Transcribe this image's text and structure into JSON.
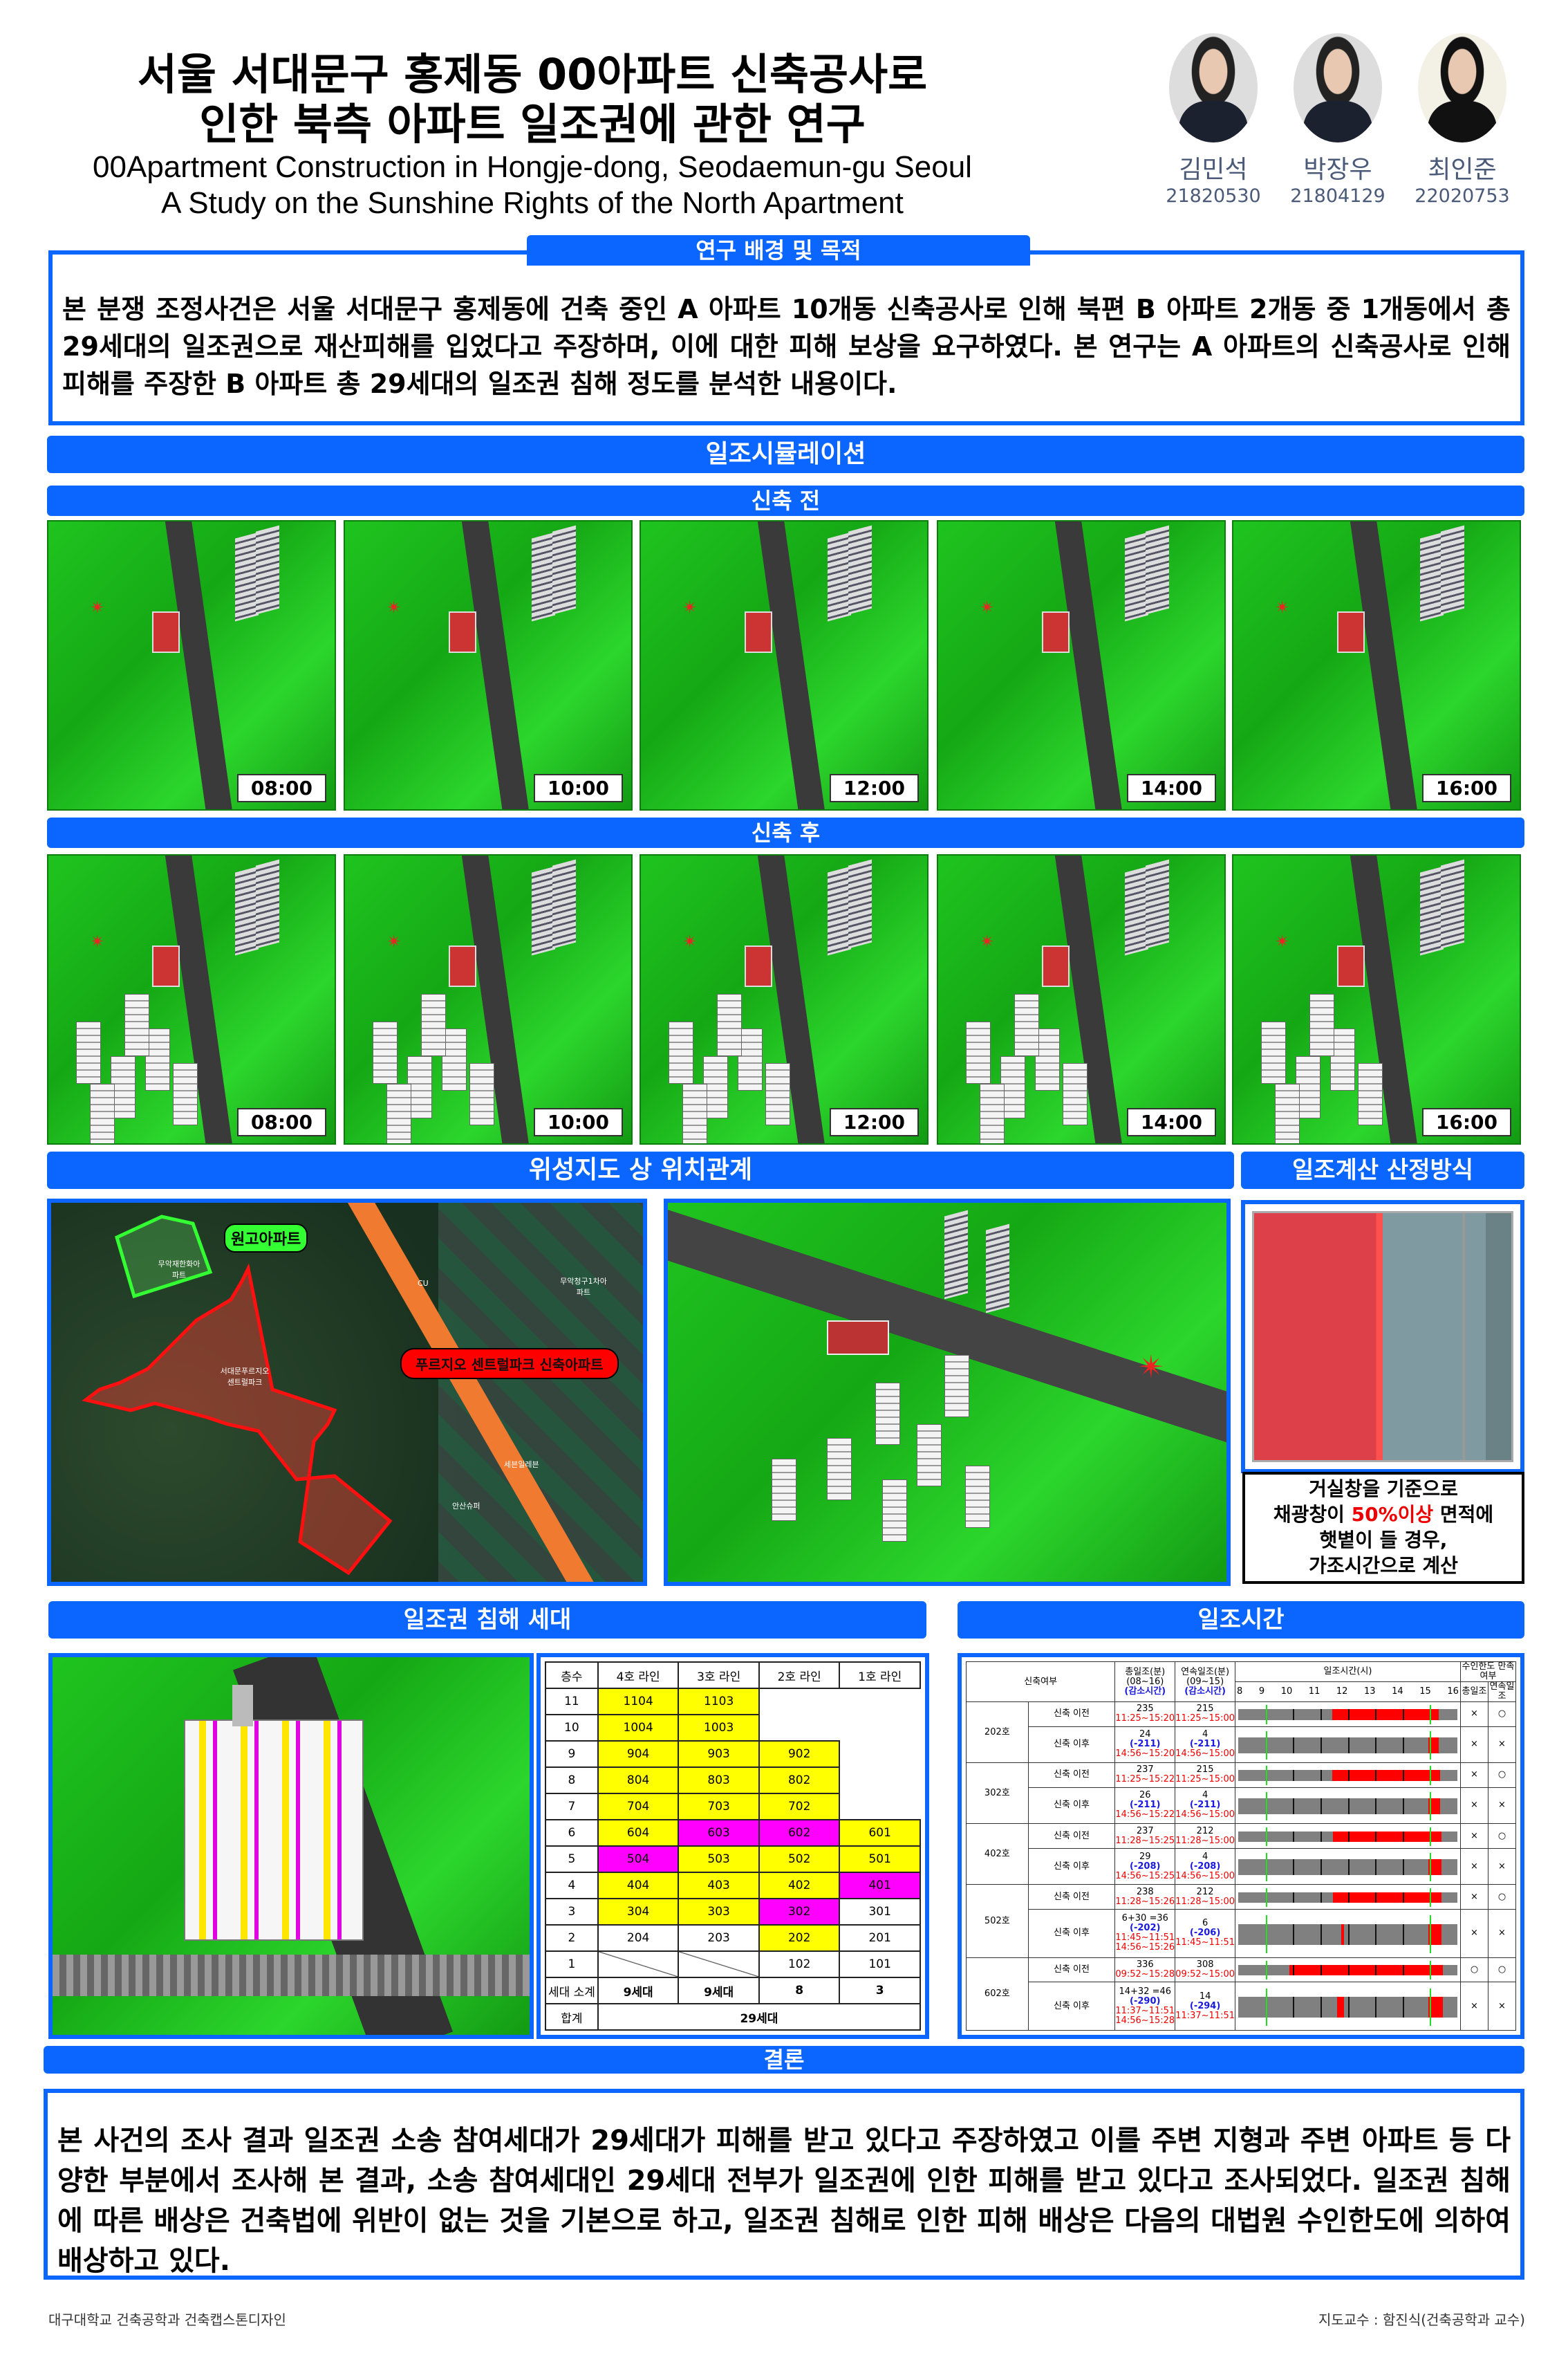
{
  "header": {
    "title_ko": [
      "서울 서대문구 홍제동 00아파트 신축공사로",
      "인한 북측 아파트 일조권에 관한 연구"
    ],
    "title_en": [
      "00Apartment Construction in Hongje-dong, Seodaemun-gu Seoul",
      "A Study on the Sunshine Rights of the North Apartment"
    ]
  },
  "authors": [
    {
      "name": "김민석",
      "id": "21820530"
    },
    {
      "name": "박장우",
      "id": "21804129"
    },
    {
      "name": "최인준",
      "id": "22020753"
    }
  ],
  "background": {
    "title": "연구 배경 및 목적",
    "text": "본 분쟁 조정사건은 서울 서대문구 홍제동에 건축 중인 A 아파트 10개동 신축공사로 인해 북편 B 아파트 2개동 중 1개동에서 총 29세대의 일조권으로 재산피해를 입었다고 주장하며, 이에 대한 피해 보상을 요구하였다. 본 연구는 A 아파트의 신축공사로 인해 피해를 주장한 B 아파트 총 29세대의 일조권 침해 정도를 분석한 내용이다."
  },
  "simulation": {
    "title": "일조시뮬레이션",
    "before_title": "신축 전",
    "after_title": "신축 후",
    "times": [
      "08:00",
      "10:00",
      "12:00",
      "14:00",
      "16:00"
    ]
  },
  "location": {
    "title": "위성지도 상 위치관계",
    "label_green": "원고아파트",
    "label_red": "푸르지오 센트럴파크 신축아파트",
    "map_labels": [
      "무악재한화아파트",
      "무악청구1차아파트",
      "서대문푸르지오센트럴파크",
      "세븐일레븐",
      "CU",
      "안산슈퍼"
    ]
  },
  "method": {
    "title": "일조계산 산정방식",
    "text_lines": [
      "거실창을 기준으로",
      "채광창이 ",
      "50%이상",
      " 면적에",
      "햇볕이 들 경우,",
      "가조시간으로 계산"
    ],
    "highlight_color": "#ee0000"
  },
  "households": {
    "title": "일조권 침해 세대",
    "headers": [
      "층수",
      "4호 라인",
      "3호 라인",
      "2호 라인",
      "1호 라인"
    ],
    "rows": [
      {
        "floor": "11",
        "cells": [
          [
            "1104",
            "y"
          ],
          [
            "1103",
            "y"
          ],
          [
            "",
            "n"
          ],
          [
            "",
            "n"
          ]
        ]
      },
      {
        "floor": "10",
        "cells": [
          [
            "1004",
            "y"
          ],
          [
            "1003",
            "y"
          ],
          [
            "",
            "n"
          ],
          [
            "",
            "n"
          ]
        ]
      },
      {
        "floor": "9",
        "cells": [
          [
            "904",
            "y"
          ],
          [
            "903",
            "y"
          ],
          [
            "902",
            "y"
          ],
          [
            "",
            "n"
          ]
        ]
      },
      {
        "floor": "8",
        "cells": [
          [
            "804",
            "y"
          ],
          [
            "803",
            "y"
          ],
          [
            "802",
            "y"
          ],
          [
            "",
            "n"
          ]
        ]
      },
      {
        "floor": "7",
        "cells": [
          [
            "704",
            "y"
          ],
          [
            "703",
            "y"
          ],
          [
            "702",
            "y"
          ],
          [
            "",
            "n"
          ]
        ]
      },
      {
        "floor": "6",
        "cells": [
          [
            "604",
            "y"
          ],
          [
            "603",
            "m"
          ],
          [
            "602",
            "m"
          ],
          [
            "601",
            "y"
          ]
        ]
      },
      {
        "floor": "5",
        "cells": [
          [
            "504",
            "m"
          ],
          [
            "503",
            "y"
          ],
          [
            "502",
            "y"
          ],
          [
            "501",
            "y"
          ]
        ]
      },
      {
        "floor": "4",
        "cells": [
          [
            "404",
            "y"
          ],
          [
            "403",
            "y"
          ],
          [
            "402",
            "y"
          ],
          [
            "401",
            "m"
          ]
        ]
      },
      {
        "floor": "3",
        "cells": [
          [
            "304",
            "y"
          ],
          [
            "303",
            "y"
          ],
          [
            "302",
            "m"
          ],
          [
            "301",
            "w"
          ]
        ]
      },
      {
        "floor": "2",
        "cells": [
          [
            "204",
            "w"
          ],
          [
            "203",
            "w"
          ],
          [
            "202",
            "y"
          ],
          [
            "201",
            "w"
          ]
        ]
      },
      {
        "floor": "1",
        "cells": [
          [
            "",
            "s"
          ],
          [
            "",
            "s"
          ],
          [
            "102",
            "w"
          ],
          [
            "101",
            "w"
          ]
        ]
      }
    ],
    "subtotal_label": "세대 소계",
    "subtotals": [
      "9세대",
      "9세대",
      "8",
      "3"
    ],
    "total_label": "합계",
    "total": "29세대",
    "colors": {
      "y": "#ffff00",
      "m": "#ff00ff"
    }
  },
  "sunshine": {
    "title": "일조시간",
    "h_status": "신축여부",
    "h_total": [
      "총일조(분)",
      "(08~16)",
      "(감소시간)"
    ],
    "h_cont": [
      "연속일조(분)",
      "(09~15)",
      "(감소시간)"
    ],
    "h_time": "일조시간(시)",
    "ticks": [
      "8",
      "9",
      "10",
      "11",
      "12",
      "13",
      "14",
      "15",
      "16"
    ],
    "h_ok": "수인한도 만족여부",
    "h_ok_total": "총일조",
    "h_ok_cont": "연속일조",
    "axis_range": [
      8,
      16
    ],
    "guide_hours": [
      9,
      15
    ],
    "bar_color": "#ff0000",
    "shade_color": "#808080",
    "units": [
      {
        "unit": "202호",
        "rows": [
          {
            "status": "신축 이전",
            "total": "235",
            "total_diff": "",
            "total_range": [
              "11:25~15:20"
            ],
            "cont": "215",
            "cont_diff": "",
            "cont_range": "11:25~15:00",
            "segments": [
              [
                11.42,
                15.33
              ]
            ],
            "ok_total": "×",
            "ok_cont": "○"
          },
          {
            "status": "신축 이후",
            "total": "24",
            "total_diff": "(-211)",
            "total_range": [
              "14:56~15:20"
            ],
            "cont": "4",
            "cont_diff": "(-211)",
            "cont_range": "14:56~15:00",
            "segments": [
              [
                14.93,
                15.33
              ]
            ],
            "ok_total": "×",
            "ok_cont": "×"
          }
        ]
      },
      {
        "unit": "302호",
        "rows": [
          {
            "status": "신축 이전",
            "total": "237",
            "total_diff": "",
            "total_range": [
              "11:25~15:22"
            ],
            "cont": "215",
            "cont_diff": "",
            "cont_range": "11:25~15:00",
            "segments": [
              [
                11.42,
                15.37
              ]
            ],
            "ok_total": "×",
            "ok_cont": "○"
          },
          {
            "status": "신축 이후",
            "total": "26",
            "total_diff": "(-211)",
            "total_range": [
              "14:56~15:22"
            ],
            "cont": "4",
            "cont_diff": "(-211)",
            "cont_range": "14:56~15:00",
            "segments": [
              [
                14.93,
                15.37
              ]
            ],
            "ok_total": "×",
            "ok_cont": "×"
          }
        ]
      },
      {
        "unit": "402호",
        "rows": [
          {
            "status": "신축 이전",
            "total": "237",
            "total_diff": "",
            "total_range": [
              "11:28~15:25"
            ],
            "cont": "212",
            "cont_diff": "",
            "cont_range": "11:28~15:00",
            "segments": [
              [
                11.47,
                15.42
              ]
            ],
            "ok_total": "×",
            "ok_cont": "○"
          },
          {
            "status": "신축 이후",
            "total": "29",
            "total_diff": "(-208)",
            "total_range": [
              "14:56~15:25"
            ],
            "cont": "4",
            "cont_diff": "(-208)",
            "cont_range": "14:56~15:00",
            "segments": [
              [
                14.93,
                15.42
              ]
            ],
            "ok_total": "×",
            "ok_cont": "×"
          }
        ]
      },
      {
        "unit": "502호",
        "rows": [
          {
            "status": "신축 이전",
            "total": "238",
            "total_diff": "",
            "total_range": [
              "11:28~15:26"
            ],
            "cont": "212",
            "cont_diff": "",
            "cont_range": "11:28~15:00",
            "segments": [
              [
                11.47,
                15.43
              ]
            ],
            "ok_total": "×",
            "ok_cont": "○"
          },
          {
            "status": "신축 이후",
            "total": "6+30 =36",
            "total_diff": "(-202)",
            "total_range": [
              "11:45~11:51",
              "14:56~15:26"
            ],
            "cont": "6",
            "cont_diff": "(-206)",
            "cont_range": "11:45~11:51",
            "segments": [
              [
                11.75,
                11.85
              ],
              [
                14.93,
                15.43
              ]
            ],
            "ok_total": "×",
            "ok_cont": "×"
          }
        ]
      },
      {
        "unit": "602호",
        "rows": [
          {
            "status": "신축 이전",
            "total": "336",
            "total_diff": "",
            "total_range": [
              "09:52~15:28"
            ],
            "cont": "308",
            "cont_diff": "",
            "cont_range": "09:52~15:00",
            "segments": [
              [
                9.87,
                15.47
              ]
            ],
            "ok_total": "○",
            "ok_cont": "○"
          },
          {
            "status": "신축 이후",
            "total": "14+32 =46",
            "total_diff": "(-290)",
            "total_range": [
              "11:37~11:51",
              "14:56~15:28"
            ],
            "cont": "14",
            "cont_diff": "(-294)",
            "cont_range": "11:37~11:51",
            "segments": [
              [
                11.62,
                11.85
              ],
              [
                14.93,
                15.47
              ]
            ],
            "ok_total": "×",
            "ok_cont": "×"
          }
        ]
      }
    ]
  },
  "conclusion": {
    "title": "결론",
    "text": "본 사건의 조사 결과 일조권 소송 참여세대가 29세대가 피해를 받고 있다고 주장하였고 이를 주변 지형과 주변 아파트 등 다양한 부분에서 조사해 본 결과,  소송 참여세대인 29세대 전부가 일조권에 인한 피해를 받고 있다고 조사되었다. 일조권 침해에 따른 배상은 건축법에 위반이 없는 것을 기본으로 하고, 일조권 침해로 인한 피해 배상은 다음의 대법원 수인한도에 의하여 배상하고 있다."
  },
  "footer": {
    "left": "대구대학교 건축공학과 건축캡스톤디자인",
    "right": "지도교수 : 함진식(건축공학과 교수)"
  },
  "accent_color": "#0a66ff"
}
